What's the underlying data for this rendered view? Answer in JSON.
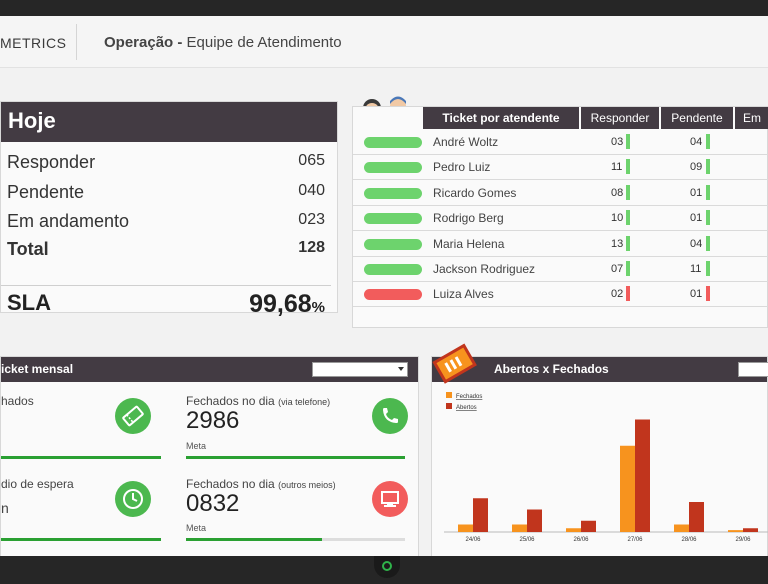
{
  "header": {
    "brand": "METRICS",
    "title_bold": "Operação - ",
    "title_rest": "Equipe de Atendimento"
  },
  "hoje": {
    "title": "Hoje",
    "rows": [
      {
        "label": "Responder",
        "value": "065"
      },
      {
        "label": "Pendente",
        "value": "040"
      },
      {
        "label": "Em andamento",
        "value": "023"
      }
    ],
    "total": {
      "label": "Total",
      "value": "128"
    },
    "sla": {
      "label": "SLA",
      "value": "99,68",
      "unit": "%"
    }
  },
  "ticket_atendente": {
    "headers": {
      "name": "Ticket por atendente",
      "responder": "Responder",
      "pendente": "Pendente",
      "andamento": "Em"
    },
    "rows": [
      {
        "name": "André Woltz",
        "responder": "03",
        "pendente": "04",
        "status": "green"
      },
      {
        "name": "Pedro Luiz",
        "responder": "11",
        "pendente": "09",
        "status": "green"
      },
      {
        "name": "Ricardo Gomes",
        "responder": "08",
        "pendente": "01",
        "status": "green"
      },
      {
        "name": "Rodrigo Berg",
        "responder": "10",
        "pendente": "01",
        "status": "green"
      },
      {
        "name": "Maria Helena",
        "responder": "13",
        "pendente": "04",
        "status": "green"
      },
      {
        "name": "Jackson Rodriguez",
        "responder": "07",
        "pendente": "11",
        "status": "green"
      },
      {
        "name": "Luiza Alves",
        "responder": "02",
        "pendente": "01",
        "status": "red"
      }
    ]
  },
  "ticket_mensal": {
    "title": "icket mensal",
    "select_value": "",
    "left1_label": "hados",
    "left2_label": "dio de espera",
    "left2_value": "n",
    "right1_label": "Fechados no dia",
    "right1_sub": "(via telefone)",
    "right1_value": "2986",
    "right1_meta": "Meta",
    "right1_progress": 1.0,
    "right2_label": "Fechados no dia",
    "right2_sub": "(outros meios)",
    "right2_value": "0832",
    "right2_meta": "Meta",
    "right2_progress": 0.62
  },
  "abertos_fechados": {
    "title": "Abertos x Fechados",
    "select_value": ""
  },
  "colors": {
    "header_bg": "#433b43",
    "green": "#6dd36d",
    "red": "#f25c5c",
    "bar_orange": "#f7931e",
    "bar_red": "#c1351d",
    "meta_green": "#2aa032"
  },
  "chart_data": {
    "type": "bar",
    "title": "Abertos x Fechados",
    "categories": [
      "24/06",
      "25/06",
      "26/06",
      "27/06",
      "28/06",
      "29/06"
    ],
    "series": [
      {
        "name": "Fechados",
        "values": [
          2,
          2,
          1,
          23,
          2,
          0.5
        ]
      },
      {
        "name": "Abertos",
        "values": [
          9,
          6,
          3,
          30,
          8,
          1
        ]
      }
    ],
    "ylim": [
      0,
      32
    ],
    "legend": "top-left"
  }
}
